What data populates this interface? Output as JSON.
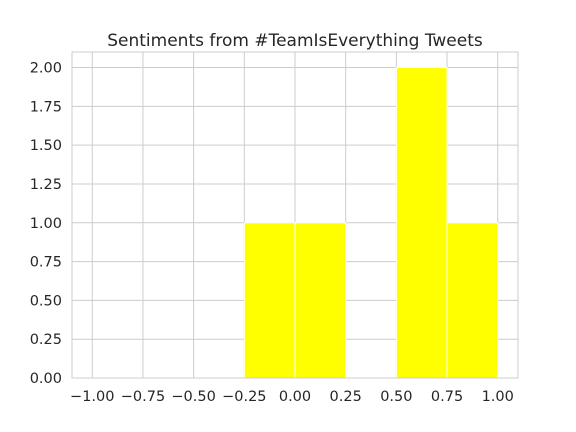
{
  "chart_data": {
    "type": "bar",
    "title": "Sentiments from #TeamIsEverything Tweets",
    "xlabel": "",
    "ylabel": "",
    "bin_edges": [
      -1.0,
      -0.75,
      -0.5,
      -0.25,
      0.0,
      0.25,
      0.5,
      0.75,
      1.0
    ],
    "values": [
      0,
      0,
      0,
      1,
      1,
      0,
      2,
      1
    ],
    "xlim": [
      -1.1,
      1.1
    ],
    "ylim": [
      0,
      2.1
    ],
    "xticks": [
      "-1.00",
      "-0.75",
      "-0.50",
      "-0.25",
      "0.00",
      "0.25",
      "0.50",
      "0.75",
      "1.00"
    ],
    "yticks": [
      "0.00",
      "0.25",
      "0.50",
      "0.75",
      "1.00",
      "1.25",
      "1.50",
      "1.75",
      "2.00"
    ],
    "grid": true,
    "bar_color": "#ffff00"
  }
}
